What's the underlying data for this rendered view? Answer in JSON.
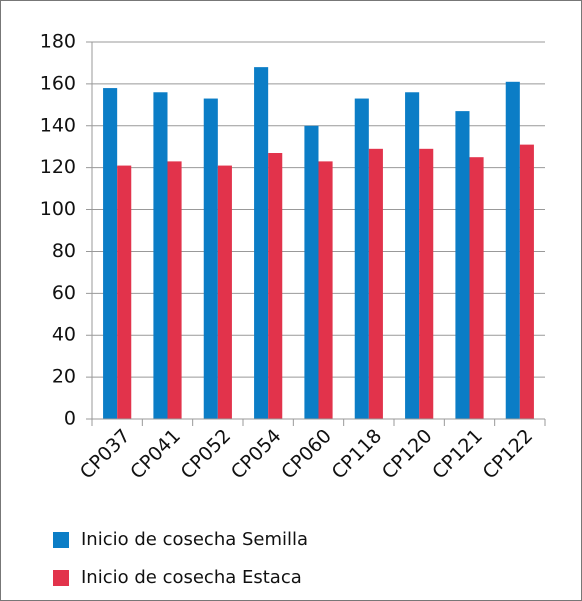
{
  "chart_data": {
    "type": "bar",
    "categories": [
      "CP037",
      "CP041",
      "CP052",
      "CP054",
      "CP060",
      "CP118",
      "CP120",
      "CP121",
      "CP122"
    ],
    "series": [
      {
        "name": "Inicio de cosecha Semilla",
        "color": "#0b7dc6",
        "values": [
          158,
          156,
          153,
          168,
          140,
          153,
          156,
          147,
          161
        ]
      },
      {
        "name": "Inicio de cosecha Estaca",
        "color": "#e2334b",
        "values": [
          121,
          123,
          121,
          127,
          123,
          129,
          129,
          125,
          131
        ]
      }
    ],
    "ylim": [
      0,
      180
    ],
    "yticks": [
      0,
      20,
      40,
      60,
      80,
      100,
      120,
      140,
      160,
      180
    ],
    "grid": true,
    "legend": "bottom"
  }
}
